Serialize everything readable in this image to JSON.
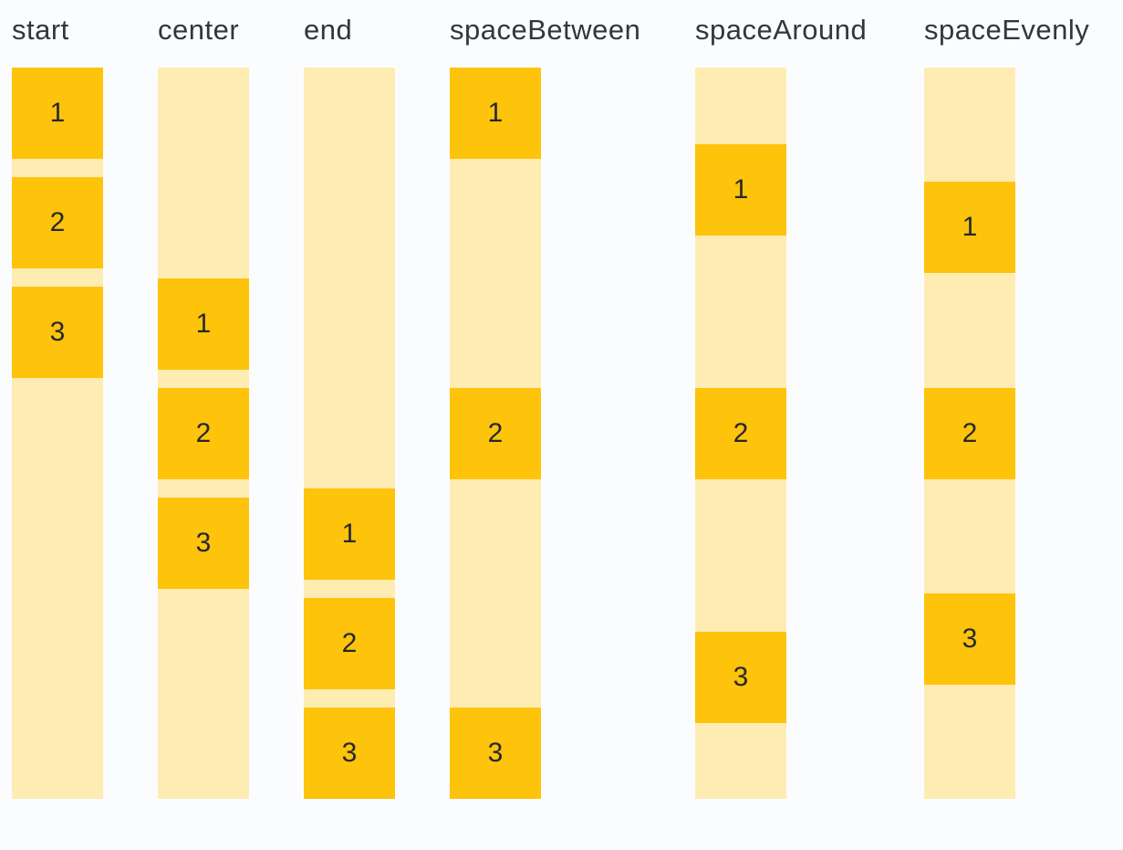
{
  "page": {
    "background": "#FBFCFE",
    "description": "Column main-axis justification demo with six variants"
  },
  "colors": {
    "item_box": "#FEC30B",
    "track_background": "#FFECB3",
    "label_text": "#33363B",
    "number_text": "#26282B"
  },
  "columns": [
    {
      "label": "start",
      "justify": "flex-start",
      "items": [
        "1",
        "2",
        "3"
      ]
    },
    {
      "label": "center",
      "justify": "center",
      "items": [
        "1",
        "2",
        "3"
      ]
    },
    {
      "label": "end",
      "justify": "flex-end",
      "items": [
        "1",
        "2",
        "3"
      ]
    },
    {
      "label": "spaceBetween",
      "justify": "space-between",
      "items": [
        "1",
        "2",
        "3"
      ]
    },
    {
      "label": "spaceAround",
      "justify": "space-around",
      "items": [
        "1",
        "2",
        "3"
      ]
    },
    {
      "label": "spaceEvenly",
      "justify": "space-evenly",
      "items": [
        "1",
        "2",
        "3"
      ]
    }
  ]
}
